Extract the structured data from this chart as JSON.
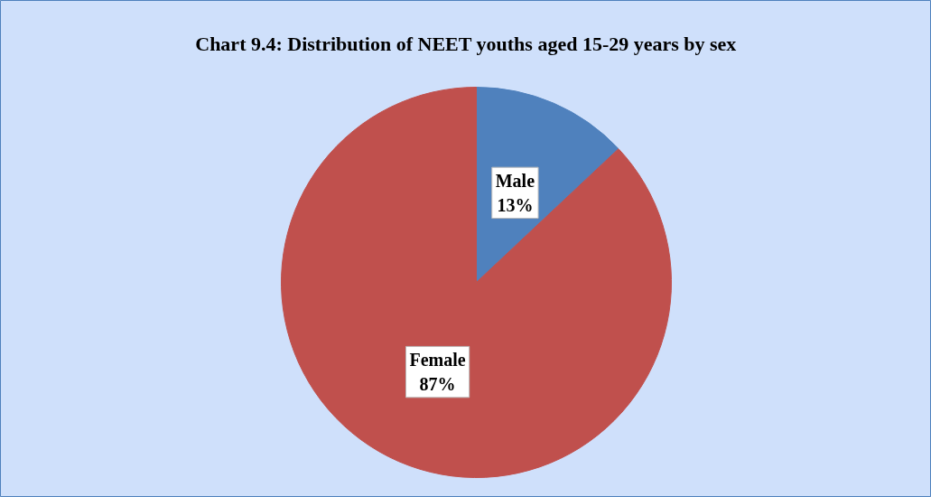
{
  "chart_data": {
    "type": "pie",
    "title": "Chart 9.4: Distribution of NEET youths aged 15-29 years by sex",
    "categories": [
      "Male",
      "Female"
    ],
    "values": [
      13,
      87
    ],
    "colors": [
      "#4f81bd",
      "#c0504d"
    ],
    "value_labels": [
      "13%",
      "87%"
    ]
  }
}
